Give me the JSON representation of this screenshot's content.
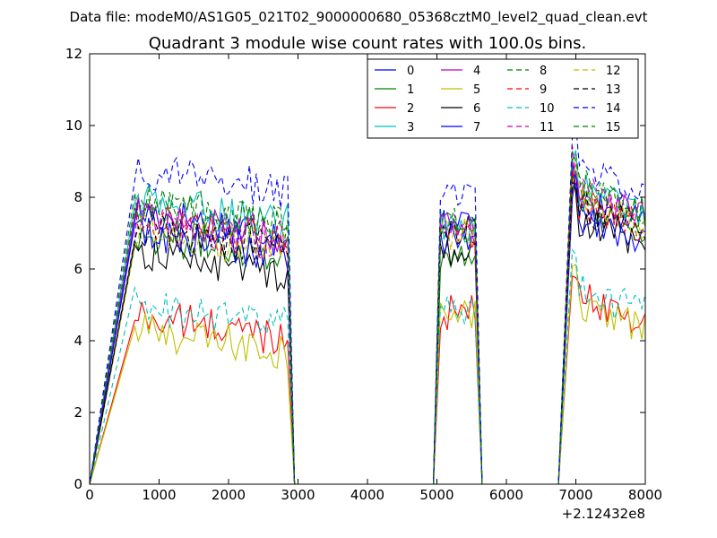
{
  "header": {
    "data_file": "Data file: modeM0/AS1G05_021T02_9000000680_05368cztM0_level2_quad_clean.evt"
  },
  "chart_data": {
    "type": "line",
    "title": "Quadrant 3 module wise count rates with 100.0s bins.",
    "xlabel": "",
    "ylabel": "",
    "x_offset_label": "+2.12432e8",
    "xlim": [
      0,
      8000
    ],
    "ylim": [
      0,
      12
    ],
    "xticks": [
      0,
      1000,
      2000,
      3000,
      4000,
      5000,
      6000,
      7000,
      8000
    ],
    "yticks": [
      0,
      2,
      4,
      6,
      8,
      10,
      12
    ],
    "grid": false,
    "legend_placement": "top-right",
    "legend_columns": 4,
    "segments": [
      {
        "start": 650,
        "end": 2850,
        "fall_end": 2950
      },
      {
        "rise_start": 4950,
        "start": 5050,
        "end": 5550,
        "fall_end": 5650
      },
      {
        "rise_start": 6750,
        "start": 6950,
        "end": 8000
      }
    ],
    "series": [
      {
        "name": "0",
        "color": "#0000ff",
        "style": "solid",
        "levels": [
          7.6,
          7.3,
          7.9
        ]
      },
      {
        "name": "1",
        "color": "#008000",
        "style": "solid",
        "levels": [
          7.0,
          6.4,
          7.8
        ]
      },
      {
        "name": "2",
        "color": "#ff0000",
        "style": "solid",
        "levels": [
          4.7,
          4.8,
          5.3
        ]
      },
      {
        "name": "3",
        "color": "#00bfbf",
        "style": "solid",
        "levels": [
          7.9,
          7.2,
          8.3
        ]
      },
      {
        "name": "4",
        "color": "#bf00bf",
        "style": "solid",
        "levels": [
          7.5,
          7.1,
          8.1
        ]
      },
      {
        "name": "5",
        "color": "#bfbf00",
        "style": "solid",
        "levels": [
          4.3,
          4.7,
          5.0
        ]
      },
      {
        "name": "6",
        "color": "#000000",
        "style": "solid",
        "levels": [
          6.5,
          6.4,
          7.4
        ]
      },
      {
        "name": "7",
        "color": "#0000ff",
        "style": "solid",
        "levels": [
          7.0,
          6.8,
          7.5
        ]
      },
      {
        "name": "8",
        "color": "#008000",
        "style": "dashed",
        "levels": [
          7.8,
          7.2,
          8.4
        ]
      },
      {
        "name": "9",
        "color": "#ff0000",
        "style": "dashed",
        "levels": [
          7.3,
          7.0,
          7.9
        ]
      },
      {
        "name": "10",
        "color": "#00bfbf",
        "style": "dashed",
        "levels": [
          5.0,
          4.9,
          5.5
        ]
      },
      {
        "name": "11",
        "color": "#bf00bf",
        "style": "dashed",
        "levels": [
          7.4,
          7.3,
          8.2
        ]
      },
      {
        "name": "12",
        "color": "#bfbf00",
        "style": "dashed",
        "levels": [
          7.1,
          7.0,
          7.9
        ]
      },
      {
        "name": "13",
        "color": "#000000",
        "style": "dashed",
        "levels": [
          7.2,
          7.0,
          7.8
        ]
      },
      {
        "name": "14",
        "color": "#0000ff",
        "style": "dashed",
        "levels": [
          8.8,
          8.1,
          8.9
        ]
      },
      {
        "name": "15",
        "color": "#008000",
        "style": "dashed",
        "levels": [
          7.9,
          7.4,
          8.3
        ]
      }
    ]
  }
}
